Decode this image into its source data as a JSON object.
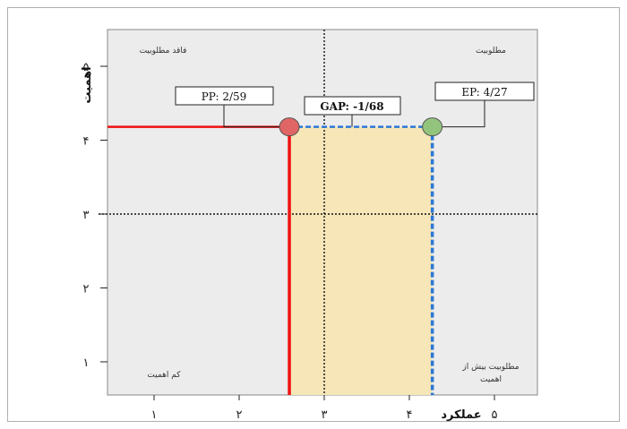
{
  "chart_data": {
    "type": "scatter",
    "x_ticks": [
      "۱",
      "۲",
      "۳",
      "۴",
      "۵"
    ],
    "y_ticks": [
      "۱",
      "۲",
      "۳",
      "۴",
      "۵"
    ],
    "xlabel": "عملکرد",
    "ylabel": "اهمیت",
    "xlim": [
      0.5,
      5
    ],
    "ylim": [
      0.6,
      5.45
    ],
    "threshold_x": 3,
    "threshold_y": 3,
    "grid": false,
    "points": [
      {
        "name": "PP",
        "x": 2.59,
        "y": 4.18,
        "color": "#e06666"
      },
      {
        "name": "EP",
        "x": 4.27,
        "y": 4.18,
        "color": "#93c47d"
      }
    ],
    "annotations": {
      "pp": "PP: 2/59",
      "gap": "GAP: -1/68",
      "ep": "EP: 4/27"
    },
    "quadrants": {
      "top_left": "فاقد مطلوبیت",
      "top_right": "مطلوبیت",
      "bottom_left": "کم اهمیت",
      "bottom_right_line1": "مطلوبیت بیش از",
      "bottom_right_line2": "اهمیت"
    },
    "colors": {
      "plot_bg": "#ececec",
      "gap_fill": "#f6e6b8",
      "pp_line": "#ee1111",
      "ep_line": "#2b78d6"
    }
  }
}
